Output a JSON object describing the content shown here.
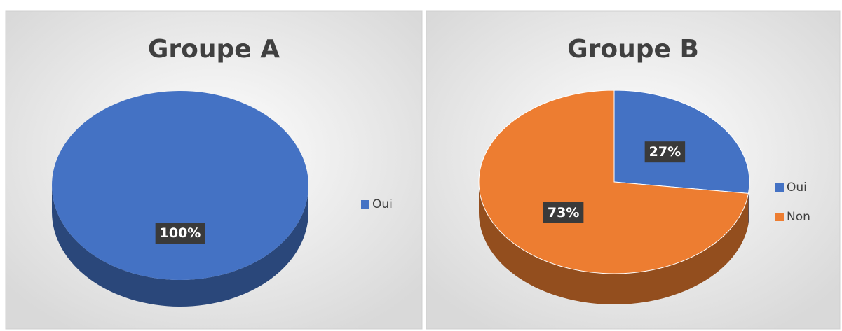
{
  "chart_data": [
    {
      "type": "pie",
      "title": "Groupe A",
      "categories": [
        "Oui"
      ],
      "values": [
        100
      ],
      "value_labels": [
        "100%"
      ],
      "colors": [
        "#4472c4"
      ],
      "legend": "right"
    },
    {
      "type": "pie",
      "title": "Groupe B",
      "categories": [
        "Oui",
        "Non"
      ],
      "values": [
        27,
        73
      ],
      "value_labels": [
        "27%",
        "73%"
      ],
      "colors": [
        "#4472c4",
        "#ed7d31"
      ],
      "legend": "right"
    }
  ]
}
